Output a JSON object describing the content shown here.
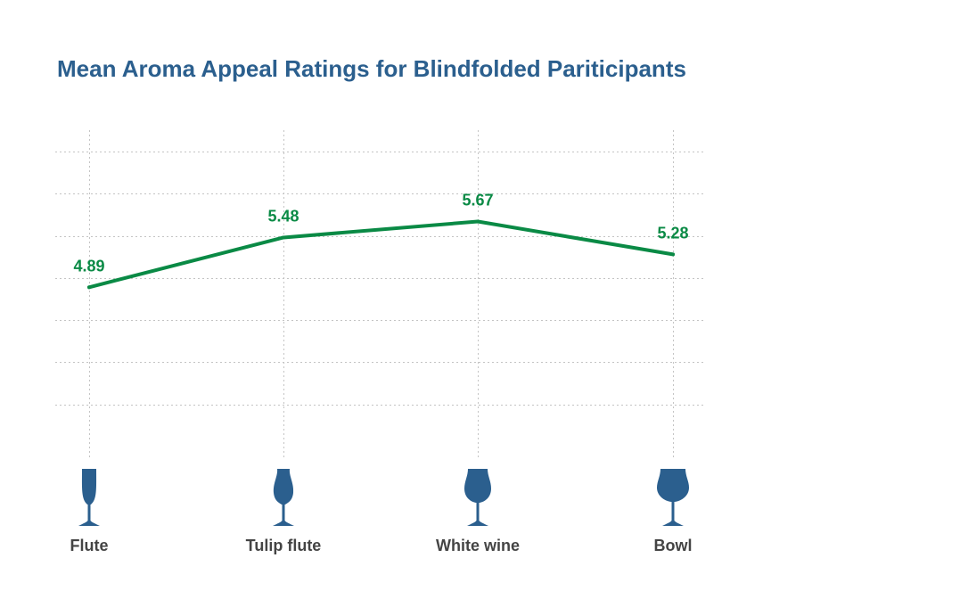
{
  "title": "Mean Aroma Appeal Ratings for Blindfolded Pariticipants",
  "colors": {
    "title": "#2b5f8e",
    "line": "#0a8a45",
    "glass": "#2b5f8e",
    "label": "#444444",
    "grid": "#c4c4c4"
  },
  "chart_data": {
    "type": "line",
    "title": "Mean Aroma Appeal Ratings for Blindfolded Pariticipants",
    "categories": [
      "Flute",
      "Tulip flute",
      "White wine",
      "Bowl"
    ],
    "category_icons": [
      "flute-glass-icon",
      "tulip-flute-glass-icon",
      "white-wine-glass-icon",
      "bowl-glass-icon"
    ],
    "series": [
      {
        "values": [
          4.89,
          5.48,
          5.67,
          5.28
        ]
      }
    ],
    "data_labels": [
      "4.89",
      "5.48",
      "5.67",
      "5.28"
    ],
    "xlabel": "",
    "ylabel": "",
    "ylim": [
      3,
      6.5
    ],
    "yticks": [
      3,
      3.5,
      4,
      4.5,
      5,
      5.5,
      6,
      6.5
    ],
    "show_y_tick_labels": false,
    "grid": true
  }
}
